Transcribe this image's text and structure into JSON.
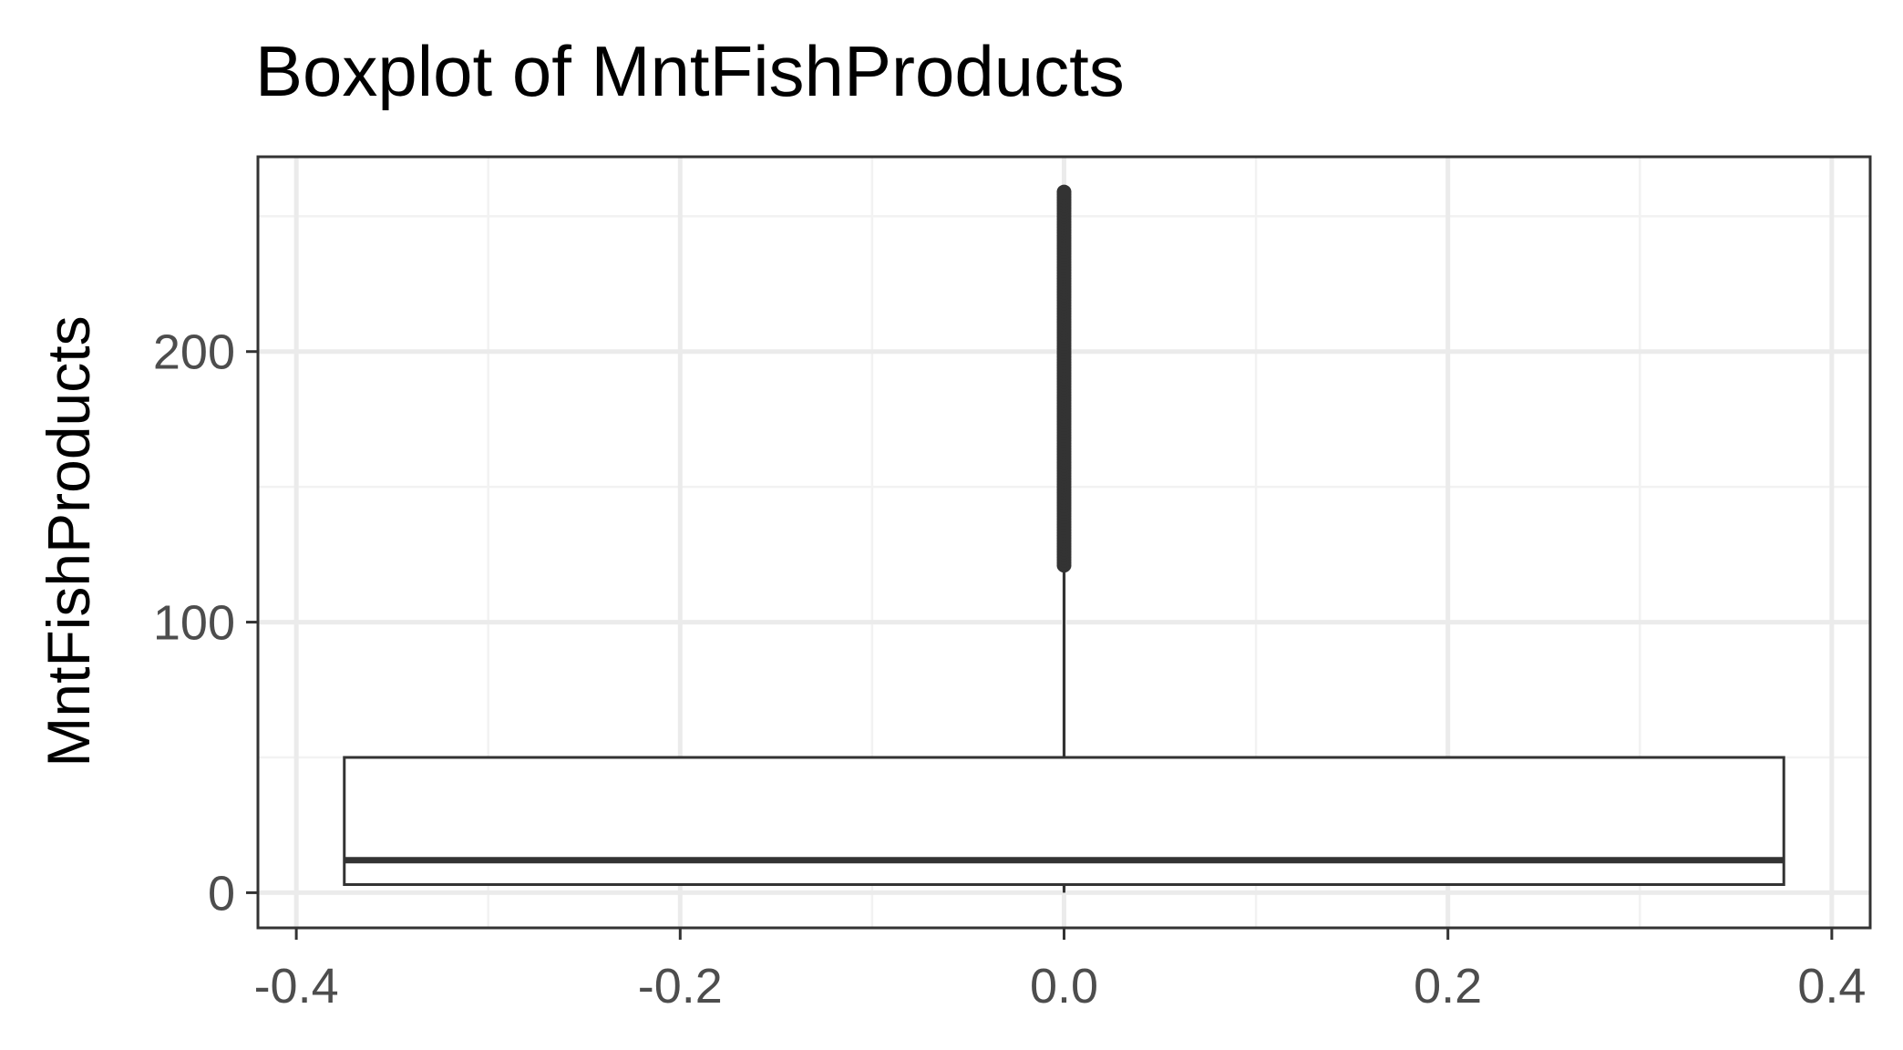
{
  "chart_data": {
    "type": "boxplot",
    "title": "Boxplot of MntFishProducts",
    "xlabel": "",
    "ylabel": "MntFishProducts",
    "xlim": [
      -0.42,
      0.42
    ],
    "ylim": [
      -13,
      272
    ],
    "x_ticks": [
      -0.4,
      -0.2,
      0.0,
      0.2,
      0.4
    ],
    "x_tick_labels": [
      "-0.4",
      "-0.2",
      "0.0",
      "0.2",
      "0.4"
    ],
    "y_ticks": [
      0,
      100,
      200
    ],
    "y_tick_labels": [
      "0",
      "100",
      "200"
    ],
    "grid": true,
    "box": {
      "x": 0.0,
      "width": 0.75,
      "q1": 3,
      "median": 12,
      "q3": 50,
      "whisker_low": 0,
      "whisker_high": 119
    },
    "outliers_range": [
      121,
      259
    ],
    "colors": {
      "panel_border": "#333333",
      "grid_major": "#ebebeb",
      "grid_minor": "#f2f2f2",
      "box_line": "#333333",
      "box_fill": "#ffffff",
      "tick_text": "#4d4d4d"
    }
  }
}
